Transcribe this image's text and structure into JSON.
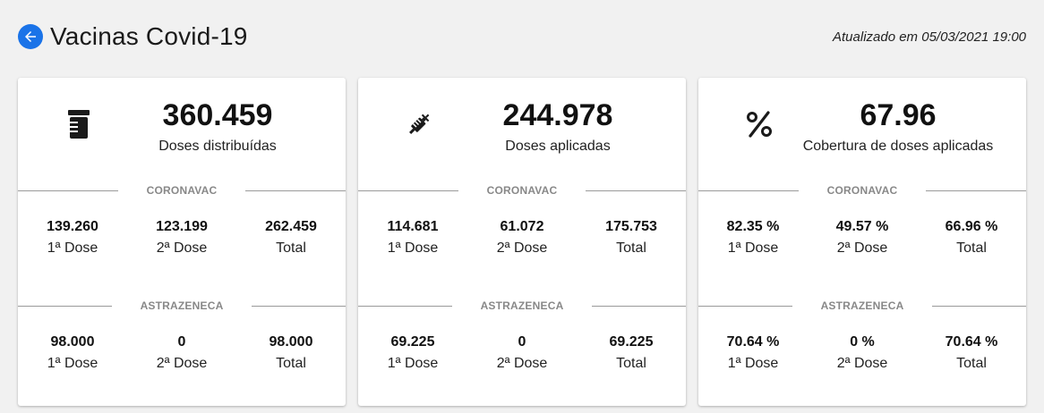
{
  "header": {
    "title": "Vacinas Covid-19",
    "updated": "Atualizado em 05/03/2021 19:00",
    "back_icon": "arrow-left-icon",
    "accent": "#1a73e8"
  },
  "cards": [
    {
      "icon": "vial-icon",
      "value": "360.459",
      "label": "Doses distribuídas",
      "sections": [
        {
          "title": "CORONAVAC",
          "stats": [
            {
              "value": "139.260",
              "label": "1ª Dose"
            },
            {
              "value": "123.199",
              "label": "2ª Dose"
            },
            {
              "value": "262.459",
              "label": "Total"
            }
          ]
        },
        {
          "title": "ASTRAZENECA",
          "stats": [
            {
              "value": "98.000",
              "label": "1ª Dose"
            },
            {
              "value": "0",
              "label": "2ª Dose"
            },
            {
              "value": "98.000",
              "label": "Total"
            }
          ]
        }
      ]
    },
    {
      "icon": "syringe-icon",
      "value": "244.978",
      "label": "Doses aplicadas",
      "sections": [
        {
          "title": "CORONAVAC",
          "stats": [
            {
              "value": "114.681",
              "label": "1ª Dose"
            },
            {
              "value": "61.072",
              "label": "2ª Dose"
            },
            {
              "value": "175.753",
              "label": "Total"
            }
          ]
        },
        {
          "title": "ASTRAZENECA",
          "stats": [
            {
              "value": "69.225",
              "label": "1ª Dose"
            },
            {
              "value": "0",
              "label": "2ª Dose"
            },
            {
              "value": "69.225",
              "label": "Total"
            }
          ]
        }
      ]
    },
    {
      "icon": "percent-icon",
      "value": "67.96",
      "label": "Cobertura de doses aplicadas",
      "sections": [
        {
          "title": "CORONAVAC",
          "stats": [
            {
              "value": "82.35 %",
              "label": "1ª Dose"
            },
            {
              "value": "49.57 %",
              "label": "2ª Dose"
            },
            {
              "value": "66.96 %",
              "label": "Total"
            }
          ]
        },
        {
          "title": "ASTRAZENECA",
          "stats": [
            {
              "value": "70.64 %",
              "label": "1ª Dose"
            },
            {
              "value": "0 %",
              "label": "2ª Dose"
            },
            {
              "value": "70.64 %",
              "label": "Total"
            }
          ]
        }
      ]
    }
  ]
}
